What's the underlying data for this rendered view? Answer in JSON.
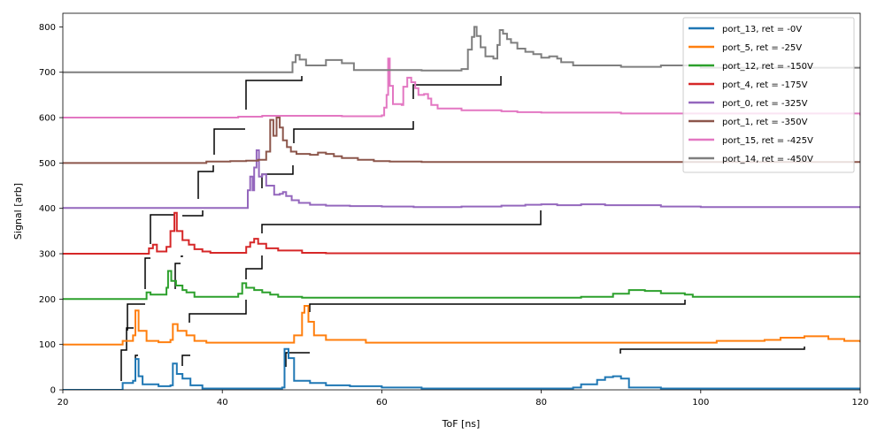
{
  "chart_data": {
    "type": "line",
    "title": "",
    "xlabel": "ToF [ns]",
    "ylabel": "Signal [arb]",
    "xlim": [
      20,
      120
    ],
    "ylim": [
      0,
      830
    ],
    "xticks": [
      20,
      40,
      60,
      80,
      100,
      120
    ],
    "yticks": [
      0,
      100,
      200,
      300,
      400,
      500,
      600,
      700,
      800
    ],
    "grid": false,
    "legend_position": "top-right",
    "step": true,
    "series": [
      {
        "name": "port_13, ret = -0V",
        "color": "#1f77b4",
        "points": [
          [
            20,
            0
          ],
          [
            26,
            0
          ],
          [
            27.5,
            15
          ],
          [
            28.8,
            20
          ],
          [
            29.1,
            68
          ],
          [
            29.5,
            30
          ],
          [
            30,
            12
          ],
          [
            32,
            8
          ],
          [
            33.5,
            10
          ],
          [
            33.8,
            58
          ],
          [
            34.3,
            35
          ],
          [
            35,
            25
          ],
          [
            36,
            10
          ],
          [
            37.5,
            3
          ],
          [
            47.5,
            5
          ],
          [
            47.8,
            90
          ],
          [
            48.3,
            70
          ],
          [
            49,
            20
          ],
          [
            51,
            15
          ],
          [
            53,
            10
          ],
          [
            56,
            8
          ],
          [
            60,
            5
          ],
          [
            65,
            3
          ],
          [
            75,
            3
          ],
          [
            84,
            5
          ],
          [
            85,
            12
          ],
          [
            87,
            22
          ],
          [
            88,
            28
          ],
          [
            89,
            30
          ],
          [
            90,
            25
          ],
          [
            91,
            5
          ],
          [
            95,
            3
          ],
          [
            120,
            3
          ]
        ]
      },
      {
        "name": "port_5, ret = -25V",
        "color": "#ff7f0e",
        "points": [
          [
            20,
            100
          ],
          [
            26,
            100
          ],
          [
            27.5,
            108
          ],
          [
            28.8,
            120
          ],
          [
            29.1,
            175
          ],
          [
            29.5,
            130
          ],
          [
            30.5,
            108
          ],
          [
            32,
            105
          ],
          [
            33.5,
            110
          ],
          [
            33.8,
            145
          ],
          [
            34.4,
            130
          ],
          [
            35.5,
            120
          ],
          [
            36.5,
            108
          ],
          [
            38,
            104
          ],
          [
            47,
            104
          ],
          [
            49,
            120
          ],
          [
            50,
            170
          ],
          [
            50.3,
            185
          ],
          [
            50.8,
            150
          ],
          [
            51.5,
            120
          ],
          [
            53,
            110
          ],
          [
            58,
            104
          ],
          [
            80,
            104
          ],
          [
            95,
            104
          ],
          [
            102,
            108
          ],
          [
            108,
            110
          ],
          [
            110,
            115
          ],
          [
            113,
            118
          ],
          [
            116,
            112
          ],
          [
            118,
            108
          ],
          [
            120,
            105
          ]
        ]
      },
      {
        "name": "port_12, ret = -150V",
        "color": "#2ca02c",
        "points": [
          [
            20,
            200
          ],
          [
            29,
            200
          ],
          [
            30.5,
            215
          ],
          [
            31,
            210
          ],
          [
            32,
            210
          ],
          [
            33,
            225
          ],
          [
            33.2,
            262
          ],
          [
            33.6,
            240
          ],
          [
            34.2,
            230
          ],
          [
            35,
            220
          ],
          [
            35.5,
            215
          ],
          [
            36.5,
            205
          ],
          [
            41.5,
            205
          ],
          [
            42,
            212
          ],
          [
            42.5,
            235
          ],
          [
            43,
            225
          ],
          [
            44,
            220
          ],
          [
            45,
            215
          ],
          [
            46,
            210
          ],
          [
            47,
            205
          ],
          [
            50,
            203
          ],
          [
            66,
            203
          ],
          [
            85,
            205
          ],
          [
            89,
            212
          ],
          [
            91,
            220
          ],
          [
            93,
            218
          ],
          [
            95,
            213
          ],
          [
            98,
            210
          ],
          [
            99,
            205
          ],
          [
            120,
            205
          ]
        ]
      },
      {
        "name": "port_4, ret = -175V",
        "color": "#d62728",
        "points": [
          [
            20,
            300
          ],
          [
            30,
            300
          ],
          [
            30.8,
            312
          ],
          [
            31.3,
            320
          ],
          [
            31.8,
            305
          ],
          [
            33,
            315
          ],
          [
            33.5,
            350
          ],
          [
            34,
            390
          ],
          [
            34.3,
            350
          ],
          [
            35,
            330
          ],
          [
            35.8,
            320
          ],
          [
            36.5,
            310
          ],
          [
            37.5,
            305
          ],
          [
            38.5,
            302
          ],
          [
            42,
            302
          ],
          [
            43,
            315
          ],
          [
            43.5,
            325
          ],
          [
            44,
            333
          ],
          [
            44.5,
            322
          ],
          [
            45.5,
            312
          ],
          [
            47,
            307
          ],
          [
            50,
            302
          ],
          [
            53,
            301
          ],
          [
            120,
            300
          ]
        ]
      },
      {
        "name": "port_0, ret = -325V",
        "color": "#9467bd",
        "points": [
          [
            20,
            401
          ],
          [
            43,
            401
          ],
          [
            43.2,
            440
          ],
          [
            43.5,
            470
          ],
          [
            43.8,
            440
          ],
          [
            44,
            490
          ],
          [
            44.3,
            528
          ],
          [
            44.6,
            470
          ],
          [
            45,
            475
          ],
          [
            45.5,
            450
          ],
          [
            46.5,
            430
          ],
          [
            47.2,
            432
          ],
          [
            47.6,
            436
          ],
          [
            48,
            427
          ],
          [
            48.7,
            418
          ],
          [
            49.6,
            412
          ],
          [
            51,
            408
          ],
          [
            53,
            406
          ],
          [
            56,
            405
          ],
          [
            60,
            404
          ],
          [
            64,
            403
          ],
          [
            70,
            404
          ],
          [
            75,
            406
          ],
          [
            78,
            408
          ],
          [
            80,
            409
          ],
          [
            82,
            407
          ],
          [
            85,
            409
          ],
          [
            88,
            407
          ],
          [
            95,
            404
          ],
          [
            100,
            403
          ],
          [
            120,
            402
          ]
        ]
      },
      {
        "name": "port_1, ret = -350V",
        "color": "#8c564b",
        "points": [
          [
            20,
            500
          ],
          [
            36,
            500
          ],
          [
            38,
            503
          ],
          [
            41,
            504
          ],
          [
            43,
            505
          ],
          [
            44.5,
            507
          ],
          [
            45.5,
            525
          ],
          [
            46,
            595
          ],
          [
            46.4,
            560
          ],
          [
            46.8,
            600
          ],
          [
            47.2,
            578
          ],
          [
            47.6,
            550
          ],
          [
            48.1,
            535
          ],
          [
            48.6,
            525
          ],
          [
            49.3,
            520
          ],
          [
            51,
            518
          ],
          [
            52,
            523
          ],
          [
            53,
            520
          ],
          [
            54,
            515
          ],
          [
            55,
            511
          ],
          [
            57,
            507
          ],
          [
            59,
            504
          ],
          [
            61,
            503
          ],
          [
            65,
            502
          ],
          [
            120,
            501
          ]
        ]
      },
      {
        "name": "port_15, ret = -425V",
        "color": "#e377c2",
        "points": [
          [
            20,
            600
          ],
          [
            40,
            600
          ],
          [
            42,
            602
          ],
          [
            45,
            604
          ],
          [
            52,
            604
          ],
          [
            55,
            603
          ],
          [
            60,
            605
          ],
          [
            60.3,
            622
          ],
          [
            60.6,
            650
          ],
          [
            60.8,
            730
          ],
          [
            61,
            670
          ],
          [
            61.4,
            630
          ],
          [
            62.5,
            628
          ],
          [
            62.7,
            668
          ],
          [
            63.2,
            688
          ],
          [
            63.7,
            678
          ],
          [
            64.2,
            665
          ],
          [
            64.6,
            650
          ],
          [
            65.3,
            652
          ],
          [
            65.8,
            642
          ],
          [
            66.2,
            628
          ],
          [
            67,
            620
          ],
          [
            70,
            616
          ],
          [
            75,
            614
          ],
          [
            77,
            612
          ],
          [
            80,
            611
          ],
          [
            90,
            609
          ],
          [
            120,
            605
          ]
        ]
      },
      {
        "name": "port_14, ret = -450V",
        "color": "#7f7f7f",
        "points": [
          [
            20,
            700
          ],
          [
            47,
            700
          ],
          [
            48.8,
            722
          ],
          [
            49.2,
            738
          ],
          [
            49.7,
            728
          ],
          [
            50.5,
            715
          ],
          [
            53,
            727
          ],
          [
            55,
            720
          ],
          [
            56.5,
            705
          ],
          [
            62,
            705
          ],
          [
            65,
            704
          ],
          [
            70,
            707
          ],
          [
            70.8,
            750
          ],
          [
            71.3,
            778
          ],
          [
            71.6,
            800
          ],
          [
            71.9,
            780
          ],
          [
            72.4,
            755
          ],
          [
            73,
            735
          ],
          [
            74,
            730
          ],
          [
            74.5,
            760
          ],
          [
            74.8,
            793
          ],
          [
            75.2,
            785
          ],
          [
            75.7,
            773
          ],
          [
            76.2,
            765
          ],
          [
            77,
            752
          ],
          [
            78,
            745
          ],
          [
            79,
            740
          ],
          [
            80,
            732
          ],
          [
            81,
            735
          ],
          [
            82,
            730
          ],
          [
            82.5,
            722
          ],
          [
            84,
            715
          ],
          [
            90,
            712
          ],
          [
            95,
            715
          ],
          [
            100,
            710
          ],
          [
            120,
            708
          ]
        ]
      }
    ]
  }
}
